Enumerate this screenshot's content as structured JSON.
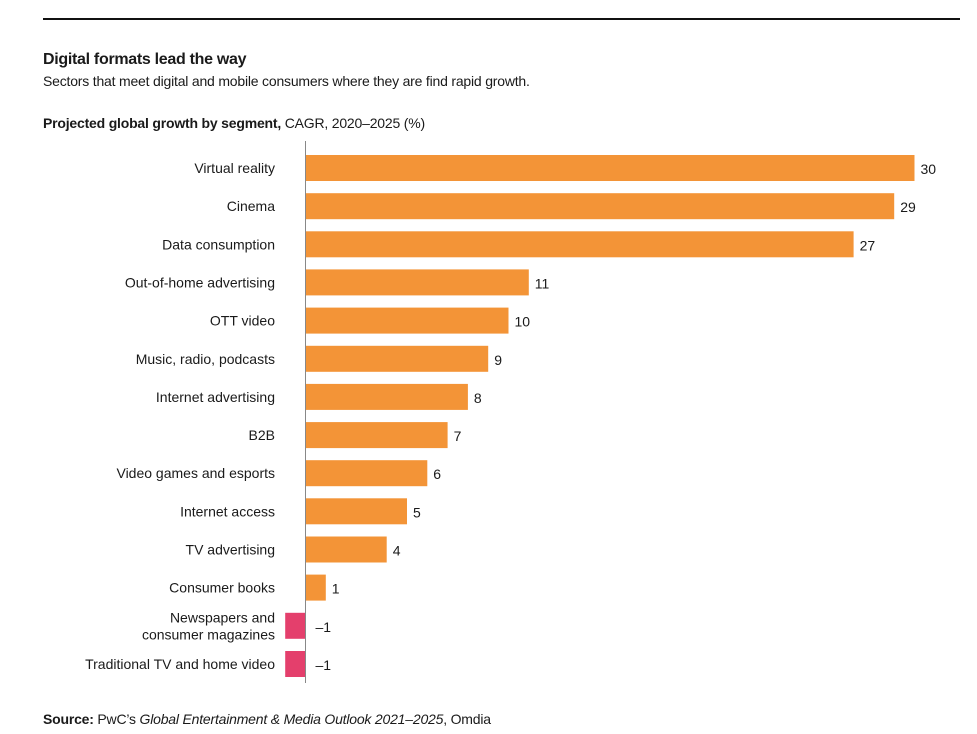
{
  "header": {
    "title": "Digital formats lead the way",
    "subtitle": "Sectors that meet digital and mobile consumers where they are find rapid growth.",
    "chart_heading_bold": "Projected global growth by segment,",
    "chart_heading_rest": " CAGR, 2020–2025 (%)"
  },
  "colors": {
    "positive": "#F39437",
    "negative": "#E43F6C",
    "axis": "#888888"
  },
  "chart_data": {
    "type": "bar",
    "orientation": "horizontal",
    "title": "Projected global growth by segment, CAGR, 2020–2025 (%)",
    "xlabel": "",
    "ylabel": "",
    "xlim": [
      -1,
      30
    ],
    "grid": false,
    "categories": [
      "Virtual reality",
      "Cinema",
      "Data consumption",
      "Out-of-home advertising",
      "OTT video",
      "Music, radio, podcasts",
      "Internet advertising",
      "B2B",
      "Video games and esports",
      "Internet access",
      "TV advertising",
      "Consumer books",
      "Newspapers and consumer magazines",
      "Traditional TV and home video"
    ],
    "category_lines": [
      [
        "Virtual reality"
      ],
      [
        "Cinema"
      ],
      [
        "Data consumption"
      ],
      [
        "Out-of-home advertising"
      ],
      [
        "OTT video"
      ],
      [
        "Music, radio, podcasts"
      ],
      [
        "Internet advertising"
      ],
      [
        "B2B"
      ],
      [
        "Video games and esports"
      ],
      [
        "Internet access"
      ],
      [
        "TV advertising"
      ],
      [
        "Consumer books"
      ],
      [
        "Newspapers and",
        "consumer magazines"
      ],
      [
        "Traditional TV and home video"
      ]
    ],
    "values": [
      30,
      29,
      27,
      11,
      10,
      9,
      8,
      7,
      6,
      5,
      4,
      1,
      -1,
      -1
    ],
    "value_labels": [
      "30",
      "29",
      "27",
      "11",
      "10",
      "9",
      "8",
      "7",
      "6",
      "5",
      "4",
      "1",
      "–1",
      "–1"
    ]
  },
  "source": {
    "label": "Source:",
    "text_pre": " PwC’s ",
    "publication": "Global Entertainment & Media Outlook 2021–2025",
    "text_post": ", Omdia"
  }
}
